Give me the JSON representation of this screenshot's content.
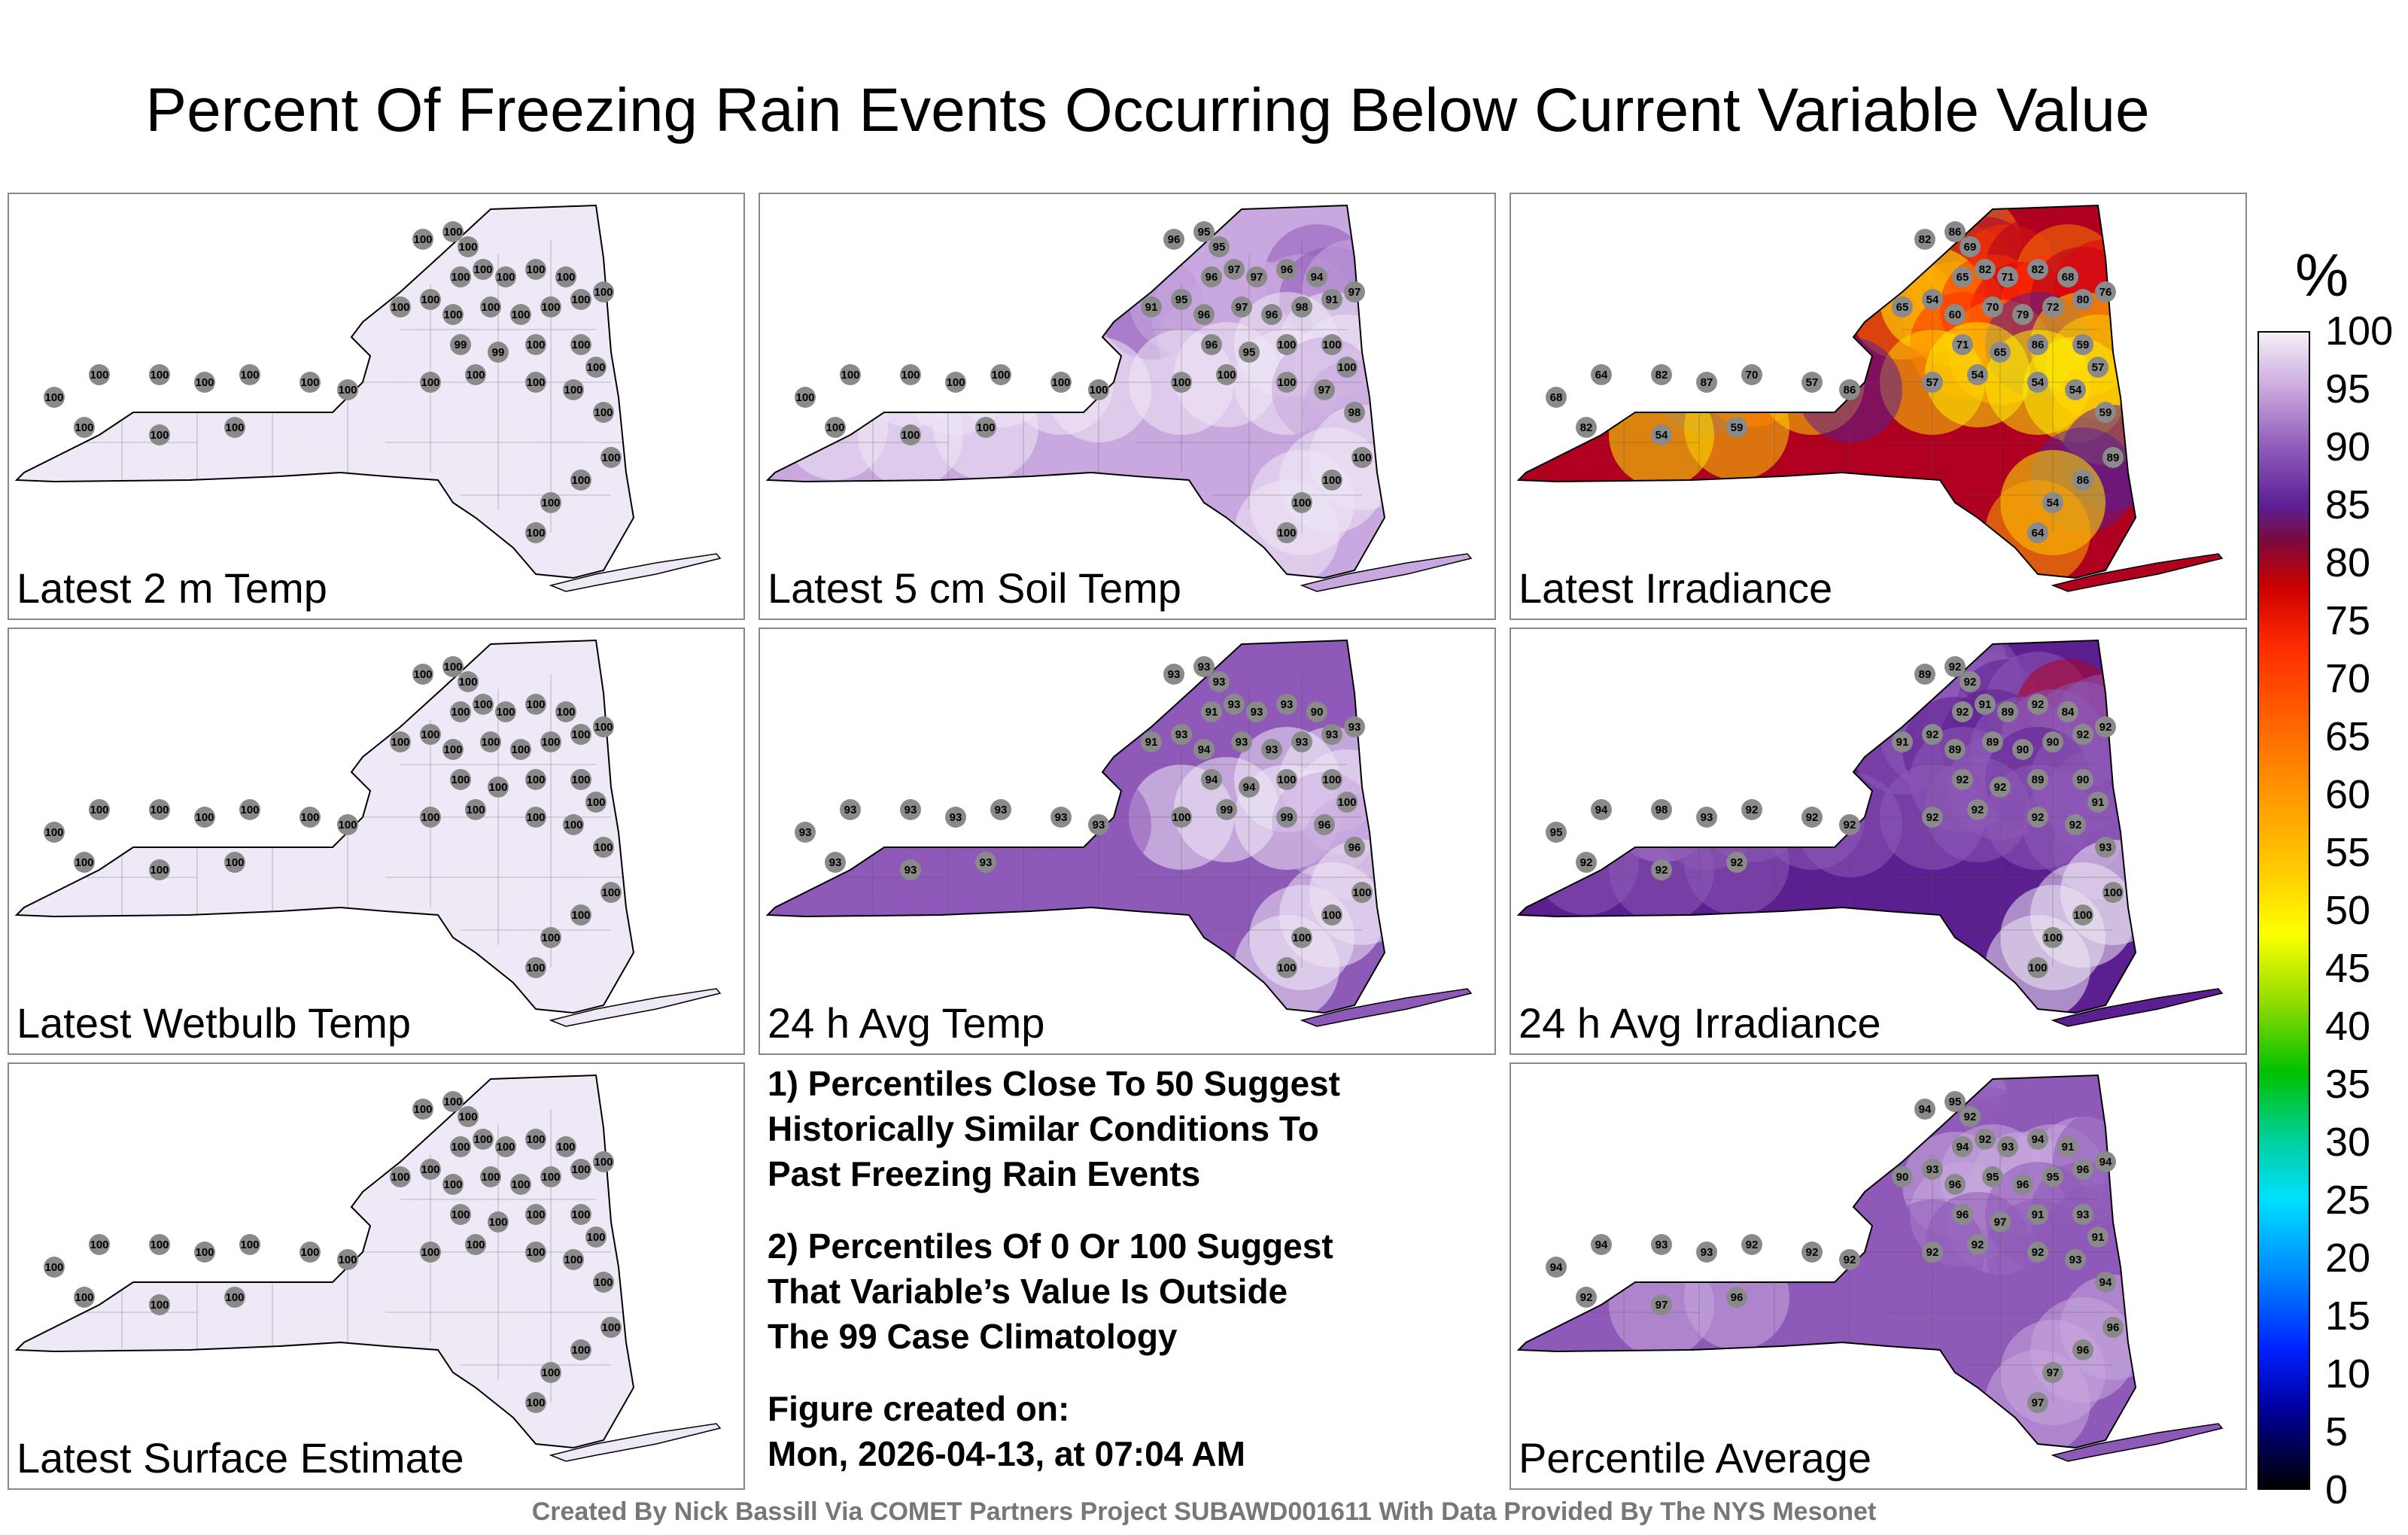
{
  "title": "Percent Of Freezing Rain Events Occurring Below Current Variable Value",
  "panels": [
    {
      "label": "Latest 2 m Temp",
      "scheme": "lavender",
      "values": [
        "100",
        "100",
        "100",
        "100",
        "100",
        "100",
        "100",
        "100",
        "100",
        "100",
        "100",
        "100",
        "100",
        "100",
        "100",
        "100",
        "99",
        "99",
        "100",
        "100",
        "100",
        "100",
        "100",
        "100",
        "100",
        "100",
        "100",
        "100",
        "100",
        "100",
        "100",
        "100",
        "100",
        "100",
        "100",
        "100",
        "100",
        "100",
        "100",
        "100"
      ]
    },
    {
      "label": "Latest 5 cm Soil Temp",
      "scheme": "lavender-purple",
      "values": [
        "96",
        "95",
        "95",
        "96",
        "97",
        "97",
        "96",
        "94",
        "91",
        "95",
        "96",
        "97",
        "96",
        "98",
        "91",
        "97",
        "96",
        "95",
        "100",
        "100",
        "100",
        "100",
        "100",
        "100",
        "97",
        "98",
        "100",
        "100",
        "100",
        "100",
        "100",
        "100",
        "100",
        "100",
        "100",
        "100",
        "100",
        "100",
        "100",
        "100"
      ]
    },
    {
      "label": "Latest Irradiance",
      "scheme": "heat",
      "values": [
        "82",
        "86",
        "69",
        "65",
        "82",
        "71",
        "82",
        "68",
        "65",
        "54",
        "60",
        "70",
        "79",
        "72",
        "80",
        "76",
        "71",
        "65",
        "86",
        "59",
        "57",
        "57",
        "54",
        "54",
        "54",
        "59",
        "89",
        "86",
        "54",
        "64",
        "64",
        "68",
        "82",
        "87",
        "70",
        "57",
        "86",
        "82",
        "54",
        "59"
      ]
    },
    {
      "label": "Latest Wetbulb Temp",
      "scheme": "lavender",
      "values": [
        "100",
        "100",
        "100",
        "100",
        "100",
        "100",
        "100",
        "100",
        "100",
        "100",
        "100",
        "100",
        "100",
        "100",
        "100",
        "100",
        "100",
        "100",
        "100",
        "100",
        "100",
        "100",
        "100",
        "100",
        "100",
        "100",
        "100",
        "100",
        "100",
        "100",
        "100",
        "100",
        "100",
        "100",
        "100",
        "100",
        "100",
        "100",
        "100",
        "100"
      ]
    },
    {
      "label": "24 h Avg Temp",
      "scheme": "purple",
      "values": [
        "93",
        "93",
        "93",
        "91",
        "93",
        "93",
        "93",
        "90",
        "91",
        "93",
        "94",
        "93",
        "93",
        "93",
        "93",
        "93",
        "94",
        "94",
        "100",
        "100",
        "100",
        "100",
        "99",
        "99",
        "96",
        "96",
        "100",
        "100",
        "100",
        "100",
        "93",
        "93",
        "93",
        "93",
        "93",
        "93",
        "93",
        "93",
        "93",
        "93"
      ]
    },
    {
      "label": "24 h Avg Irradiance",
      "scheme": "purple-deep",
      "values": [
        "89",
        "92",
        "92",
        "92",
        "91",
        "89",
        "92",
        "84",
        "91",
        "92",
        "89",
        "89",
        "90",
        "90",
        "92",
        "92",
        "92",
        "92",
        "89",
        "90",
        "91",
        "92",
        "92",
        "92",
        "92",
        "93",
        "100",
        "100",
        "100",
        "100",
        "94",
        "95",
        "98",
        "93",
        "92",
        "92",
        "92",
        "92",
        "92",
        "92"
      ]
    },
    {
      "label": "Latest Surface Estimate",
      "scheme": "lavender",
      "values": [
        "100",
        "100",
        "100",
        "100",
        "100",
        "100",
        "100",
        "100",
        "100",
        "100",
        "100",
        "100",
        "100",
        "100",
        "100",
        "100",
        "100",
        "100",
        "100",
        "100",
        "100",
        "100",
        "100",
        "100",
        "100",
        "100",
        "100",
        "100",
        "100",
        "100",
        "100",
        "100",
        "100",
        "100",
        "100",
        "100",
        "100",
        "100",
        "100",
        "100"
      ]
    },
    {
      "label": "Percentile Average",
      "scheme": "purple-mid",
      "values": [
        "94",
        "95",
        "92",
        "94",
        "92",
        "93",
        "94",
        "91",
        "90",
        "93",
        "96",
        "95",
        "96",
        "95",
        "96",
        "94",
        "96",
        "97",
        "91",
        "93",
        "91",
        "92",
        "92",
        "92",
        "93",
        "94",
        "96",
        "96",
        "97",
        "97",
        "94",
        "94",
        "93",
        "93",
        "92",
        "92",
        "92",
        "92",
        "97",
        "96"
      ]
    }
  ],
  "notes": [
    "1) Percentiles Close To 50 Suggest\nHistorically Similar Conditions To\nPast Freezing Rain Events",
    "2) Percentiles Of 0 Or 100 Suggest\nThat Variable’s Value Is Outside\nThe 99 Case Climatology",
    "Figure created on:\nMon, 2026-04-13, at 07:04 AM"
  ],
  "footer": "Created By Nick Bassill Via COMET Partners Project SUBAWD001611 With Data Provided By The NYS Mesonet",
  "colorbar": {
    "unit": "%",
    "ticks": [
      "100",
      "95",
      "90",
      "85",
      "80",
      "75",
      "70",
      "65",
      "60",
      "55",
      "50",
      "45",
      "40",
      "35",
      "30",
      "25",
      "20",
      "15",
      "10",
      "5",
      "0"
    ]
  },
  "colors": {
    "lavender": "#ece4f2",
    "lavender-purple": "#cdb6e0",
    "purple": "#8b58b6",
    "purple-deep": "#6a2fa0",
    "purple-mid": "#8e5cb8",
    "station": "#8a8a8a"
  }
}
